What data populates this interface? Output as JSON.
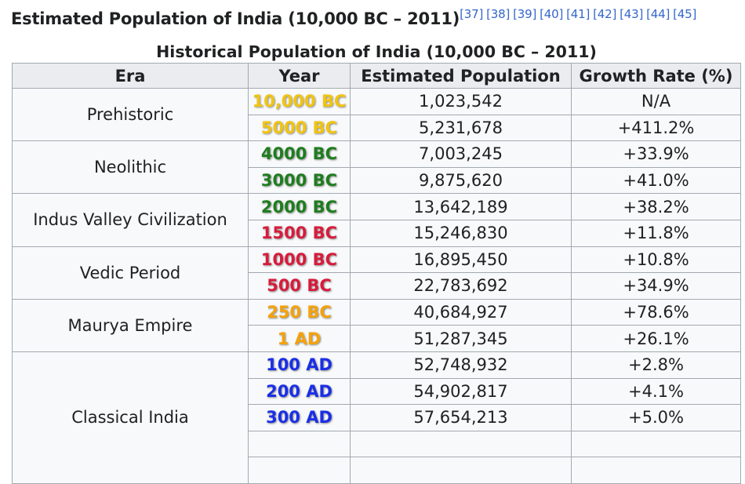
{
  "heading": {
    "title": "Estimated Population of India (10,000 BC – 2011)",
    "refs": [
      "[37]",
      "[38]",
      "[39]",
      "[40]",
      "[41]",
      "[42]",
      "[43]",
      "[44]",
      "[45]"
    ]
  },
  "table": {
    "caption": "Historical Population of India (10,000 BC – 2011)",
    "headers": [
      "Era",
      "Year",
      "Estimated Population",
      "Growth Rate (%)"
    ],
    "eras": [
      "Prehistoric",
      "Neolithic",
      "Indus Valley Civilization",
      "Vedic Period",
      "Maurya Empire",
      "Classical India"
    ],
    "rows": [
      {
        "year": "10,000 BC",
        "pop": "1,023,542",
        "growth": "N/A",
        "color": "#f2c40f"
      },
      {
        "year": "5000 BC",
        "pop": "5,231,678",
        "growth": "+411.2%",
        "color": "#f2c40f"
      },
      {
        "year": "4000 BC",
        "pop": "7,003,245",
        "growth": "+33.9%",
        "color": "#1e7d1e"
      },
      {
        "year": "3000 BC",
        "pop": "9,875,620",
        "growth": "+41.0%",
        "color": "#1e7d1e"
      },
      {
        "year": "2000 BC",
        "pop": "13,642,189",
        "growth": "+38.2%",
        "color": "#1e7d1e"
      },
      {
        "year": "1500 BC",
        "pop": "15,246,830",
        "growth": "+11.8%",
        "color": "#d81b3c"
      },
      {
        "year": "1000 BC",
        "pop": "16,895,450",
        "growth": "+10.8%",
        "color": "#d81b3c"
      },
      {
        "year": "500 BC",
        "pop": "22,783,692",
        "growth": "+34.9%",
        "color": "#d81b3c"
      },
      {
        "year": "250 BC",
        "pop": "40,684,927",
        "growth": "+78.6%",
        "color": "#f5a20a"
      },
      {
        "year": "1 AD",
        "pop": "51,287,345",
        "growth": "+26.1%",
        "color": "#f5a20a"
      },
      {
        "year": "100 AD",
        "pop": "52,748,932",
        "growth": "+2.8%",
        "color": "#1a2ee8"
      },
      {
        "year": "200 AD",
        "pop": "54,902,817",
        "growth": "+4.1%",
        "color": "#1a2ee8"
      },
      {
        "year": "300 AD",
        "pop": "57,654,213",
        "growth": "+5.0%",
        "color": "#1a2ee8"
      }
    ]
  }
}
